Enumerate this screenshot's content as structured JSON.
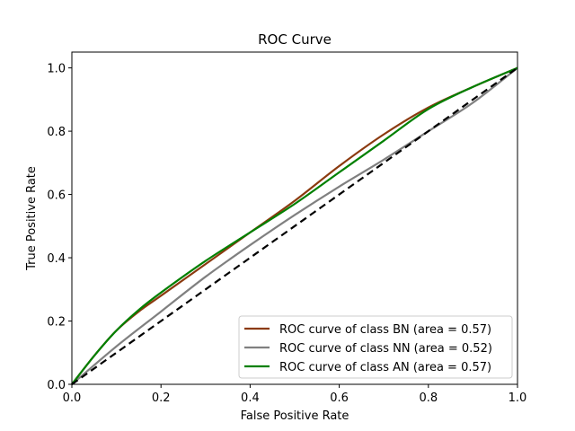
{
  "chart_data": {
    "type": "line",
    "title": "ROC Curve",
    "xlabel": "False Positive Rate",
    "ylabel": "True Positive Rate",
    "xlim": [
      0,
      1
    ],
    "ylim": [
      0,
      1.05
    ],
    "xticks": [
      "0.0",
      "0.2",
      "0.4",
      "0.6",
      "0.8",
      "1.0"
    ],
    "yticks": [
      "0.0",
      "0.2",
      "0.4",
      "0.6",
      "0.8",
      "1.0"
    ],
    "grid": false,
    "legend_position": "lower-right",
    "series": [
      {
        "name": "ROC curve of class BN (area = 0.57)",
        "color": "#8b3a0f",
        "x": [
          0.0,
          0.05,
          0.1,
          0.15,
          0.2,
          0.3,
          0.4,
          0.5,
          0.6,
          0.7,
          0.8,
          0.9,
          1.0
        ],
        "y": [
          0.0,
          0.09,
          0.17,
          0.23,
          0.28,
          0.38,
          0.48,
          0.58,
          0.69,
          0.79,
          0.875,
          0.94,
          1.0
        ]
      },
      {
        "name": "ROC curve of class NN (area = 0.52)",
        "color": "#808080",
        "x": [
          0.0,
          0.1,
          0.2,
          0.3,
          0.4,
          0.5,
          0.6,
          0.7,
          0.8,
          0.9,
          1.0
        ],
        "y": [
          0.0,
          0.12,
          0.23,
          0.34,
          0.44,
          0.535,
          0.625,
          0.71,
          0.8,
          0.89,
          1.0
        ]
      },
      {
        "name": "ROC curve of class AN (area = 0.57)",
        "color": "#008000",
        "x": [
          0.0,
          0.05,
          0.1,
          0.15,
          0.2,
          0.3,
          0.4,
          0.5,
          0.6,
          0.7,
          0.8,
          0.9,
          1.0
        ],
        "y": [
          0.0,
          0.09,
          0.17,
          0.235,
          0.29,
          0.39,
          0.48,
          0.57,
          0.67,
          0.77,
          0.87,
          0.94,
          1.0
        ]
      },
      {
        "name": "",
        "style": "dashed",
        "color": "#000000",
        "x": [
          0.0,
          1.0
        ],
        "y": [
          0.0,
          1.0
        ]
      }
    ]
  }
}
